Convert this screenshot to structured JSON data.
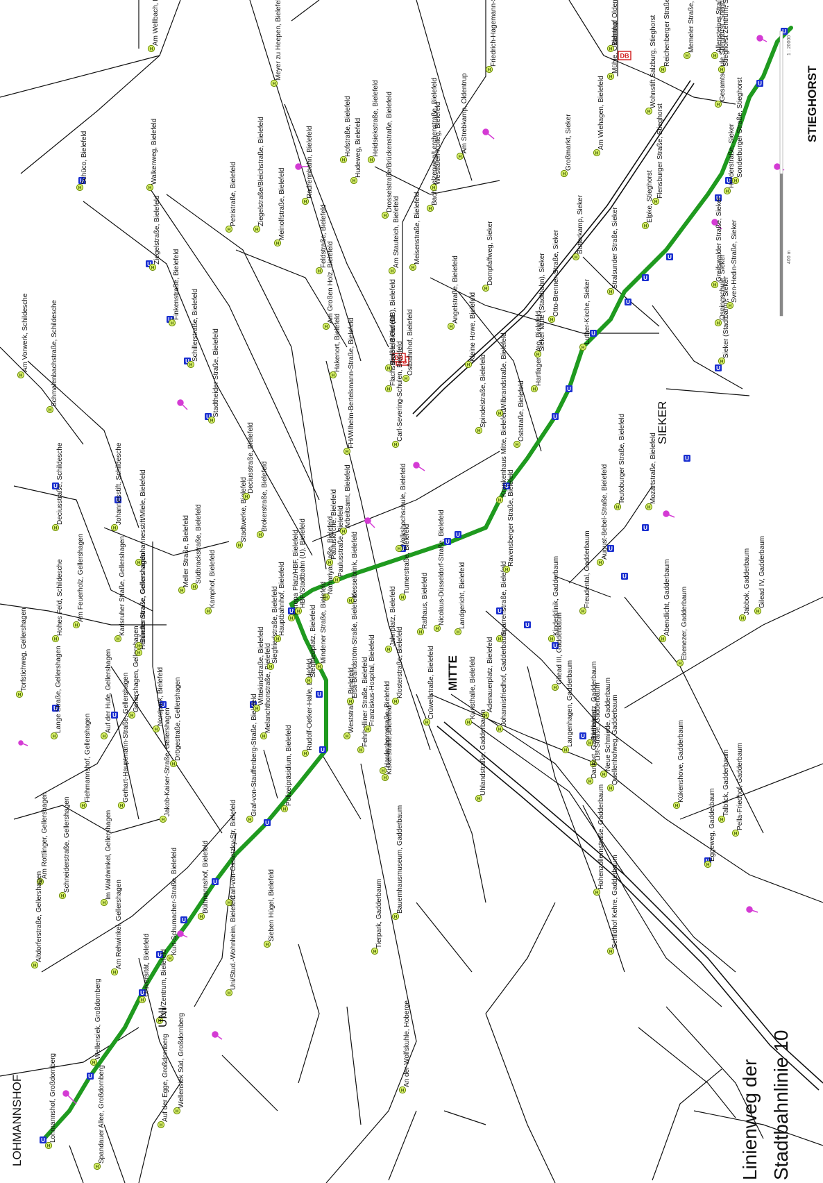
{
  "title": {
    "line1": "Linienweg der",
    "line2": "Stadtbahnlinie 10"
  },
  "districts": [
    "LOHMANNSHOF",
    "UNI",
    "MITTE",
    "SIEKER",
    "STIEGHORST"
  ],
  "scale_bar": {
    "ratio": "1 : 20000",
    "length": "400 m"
  },
  "symbols": {
    "stadtbahn": "U",
    "bus": "H",
    "rail": "DB"
  },
  "colors": {
    "route": "#1f9a1f",
    "network": "#111111",
    "bus_stop_fill": "#d8f06a",
    "bus_stop_stroke": "#6a8a00",
    "stadtbahn_stop": "#1a2fd0",
    "rail_stop": "#d01818",
    "poi": "#d43bd4"
  },
  "stations": [
    {
      "name": "Lohmannshof, Großdornberg",
      "type": "U"
    },
    {
      "name": "Wellensiek, Großdornberg",
      "type": "U"
    },
    {
      "name": "Universität, Bielefeld",
      "type": "U"
    },
    {
      "name": "Uni/Zentrum, Bielefeld",
      "type": "U"
    },
    {
      "name": "Kurt-Schumacher-Straße, Bielefeld",
      "type": "U"
    },
    {
      "name": "Bültmannshof, Bielefeld",
      "type": "U"
    },
    {
      "name": "Graf-von-Stauffenberg-Straße, Bielefeld",
      "type": "U"
    },
    {
      "name": "Rudolf-Oetker-Halle, Bielefeld",
      "type": "U"
    },
    {
      "name": "Siegfriedplatz, Bielefeld",
      "type": "U"
    },
    {
      "name": "Hauptbahnhof, Bielefeld",
      "type": "U"
    },
    {
      "name": "Jahnplatz, Bielefeld",
      "type": "U"
    },
    {
      "name": "Rathaus, Bielefeld",
      "type": "U"
    },
    {
      "name": "Nicolaus-Düsseldorf-Straße, Bielefeld",
      "type": "U"
    },
    {
      "name": "Ravensberger Straße, Bielefeld",
      "type": "U"
    },
    {
      "name": "Krankenhaus Mitte, Bielefeld",
      "type": "U"
    },
    {
      "name": "Oststraße, Bielefeld",
      "type": "U"
    },
    {
      "name": "Hartlager Weg, Bielefeld",
      "type": "U"
    },
    {
      "name": "Sieker Mitte (Stadtbahn), Sieker",
      "type": "U"
    },
    {
      "name": "Luther-Kirche, Sieker",
      "type": "U"
    },
    {
      "name": "Stralsunder Straße, Sieker",
      "type": "U"
    },
    {
      "name": "Elpke, Stieghorst",
      "type": "U"
    },
    {
      "name": "Flensburger Straße, Stieghorst",
      "type": "U"
    },
    {
      "name": "Gesamtschule Stieghorst, Stieghorst",
      "type": "U"
    },
    {
      "name": "Stieghorst Zentrum, Stieghorst",
      "type": "U"
    },
    {
      "name": "Schüco, Bielefeld",
      "type": "U"
    },
    {
      "name": "Ziegelstraße, Bielefeld",
      "type": "U"
    },
    {
      "name": "Finkenstraße, Bielefeld",
      "type": "U"
    },
    {
      "name": "Schillerstraße, Bielefeld",
      "type": "U"
    },
    {
      "name": "Stadtheider Straße, Bielefeld",
      "type": "U"
    },
    {
      "name": "Deciusstraße, Schildesche",
      "type": "U"
    },
    {
      "name": "Johannesstift, Schildesche",
      "type": "U"
    },
    {
      "name": "Lange Straße, Gellershagen",
      "type": "U"
    },
    {
      "name": "Auf der Hufe, Gellershagen",
      "type": "U"
    },
    {
      "name": "Nordpark, Bielefeld",
      "type": "U"
    },
    {
      "name": "Wittekindstraße, Bielefeld",
      "type": "U"
    },
    {
      "name": "Landgericht, Bielefeld",
      "type": "U"
    },
    {
      "name": "Kunsthalle, Bielefeld",
      "type": "U"
    },
    {
      "name": "Adenauerplatz, Bielefeld",
      "type": "U"
    },
    {
      "name": "August-Bebel-Straße, Bielefeld",
      "type": "U"
    },
    {
      "name": "Teutoburger Straße, Bielefeld",
      "type": "U"
    },
    {
      "name": "Mozartstraße, Bielefeld",
      "type": "U"
    },
    {
      "name": "Prießallee, Bielefeld",
      "type": "U"
    },
    {
      "name": "Sieker (Stadtbahn), Sieker",
      "type": "U"
    },
    {
      "name": "Bethel, Gadderbaum",
      "type": "U"
    },
    {
      "name": "Eggeweg, Gadderbaum",
      "type": "U"
    },
    {
      "name": "Bielefeld Hbf",
      "type": "DB"
    },
    {
      "name": "Bielefeld Ost (DB)",
      "type": "DB"
    },
    {
      "name": "Oldentrup",
      "type": "DB"
    }
  ],
  "labels": [
    "Am Vorwerk, Schildesche",
    "Schmalenbachstraße, Schildesche",
    "Deciusstraße, Schildesche",
    "Johannesstift, Schildesche",
    "Torfstichweg, Gellershagen",
    "Hohes Feld, Schildesche",
    "Am Feuerholz, Gellershagen",
    "Gellershagen, Gellershagen",
    "Johannesstift/Mlele, Bielefeld",
    "Meller Straße, Bielefeld",
    "Südbrackstraße, Bielefeld",
    "Kamphof, Bielefeld",
    "Bünder Straße, Gellershagen",
    "Karlsruher Straße, Gellershagen",
    "Hennettenstraße, Gellershagen",
    "Lange Straße, Gellershagen",
    "Auf der Hufe, Gellershagen",
    "Nordpark, Bielefeld",
    "Drögestraße, Gellershagen",
    "Fiehmannshof, Gellershagen",
    "Gerhart-Hauptmann-Straße, Gellershagen",
    "Jakob-Kaiser-Straße, Gellershagen",
    "Am Rottlinger, Gellershagen",
    "Schneiderstraße, Gellershagen",
    "Im Waldwinkel, Gellershagen",
    "Am Rehwinkel, Gellershagen",
    "Altdorferstraße, Gellershagen",
    "Kurt-Schumacher-Straße, Bielefeld",
    "Bültmannshof, Bielefeld",
    "Carl-von-Ossietzky-Str, Bielefeld",
    "Universität, Bielefeld",
    "Uni/Zentrum, Bielefeld",
    "Wellensiek, Großdornberg",
    "Lohmannshof, Großdornberg",
    "Spandauer Allee, Großdornberg",
    "Wellensiek Süd, Großdornberg",
    "Auf der Egge, Großdornberg",
    "Uni/Stud.-Wohnheim, Bielefeld",
    "Sieben Hügel, Bielefeld",
    "Graf-von-Stauffenberg-Straße, Bielefeld",
    "Polizeipräsidium, Bielefeld",
    "Rudolf-Oetker-Halle, Bielefeld",
    "Melanchthonstraße, Bielefeld",
    "Wittekindstraße, Bielefeld",
    "Siegfriedstraße, Bielefeld",
    "Siegfriedplatz, Bielefeld",
    "Weststraße, Bielefeld",
    "Fehrbelliner Straße, Bielefeld",
    "Hauptbahnhof, Bielefeld",
    "Europa Platz/HBF, Bielefeld",
    "HBF/Stadtbahn (U), Bielefeld",
    "Nahariyastraße, Bielefeld",
    "Mindener Straße, Bielefeld",
    "Elsa-Brändström-Straße, Bielefeld",
    "Franziskus-Hospital, Bielefeld",
    "Hardenbergstraße, Bielefeld",
    "Kiskerstraße, Bielefeld",
    "Crüwellstraße, Bielefeld",
    "Klosterstraße, Bielefeld",
    "Jahnplatz, Bielefeld",
    "Kesselbrink, Bielefeld",
    "Paulusstraße, Bielefeld",
    "Pauluskirche, Bielefeld",
    "Arbeitsamt, Bielefeld",
    "Brokerstraße, Bielefeld",
    "Stadtwerke, Bielefeld",
    "Deciusstraße, Bielefeld",
    "Turnerstraße, Bielefeld",
    "Volkshochschule, Bielefeld",
    "Rathaus, Bielefeld",
    "Nicolaus-Düsseldorf-Straße, Bielefeld",
    "Landgericht, Bielefeld",
    "Kunsthalle, Bielefeld",
    "Adenauerplatz, Bielefeld",
    "Sparrenstraße, Bielefeld",
    "Ravensberger Straße, Bielefeld",
    "Krankenhaus Mitte, Bielefeld",
    "Oststraße, Bielefeld",
    "Hartlager Weg, Bielefeld",
    "Spindelstraße, Bielefeld",
    "Wilbrandstraße, Bielefeld",
    "Kleine Howe, Bielefeld",
    "Angelstraße, Bielefeld",
    "Carl-Severing-Schulen, Bielefeld",
    "Ostbahnhof, Bielefeld",
    "Bielefeld Ost (DB), Bielefeld",
    "Flachsstraße, Bielefeld",
    "FH/Wilhelm-Bertelsmann-Straße, Bielefeld",
    "Hakenort, Bielefeld",
    "Am Großen Holz, Bielefeld",
    "Feldstraße, Bielefeld",
    "Meinolfstraße, Bielefeld",
    "Ziegelstraße/Bleichstraße, Bielefeld",
    "Petristraße, Bielefeld",
    "Radrennbahn, Bielefeld",
    "Hudeweg, Bielefeld",
    "Hofstraße, Bielefeld",
    "Heidsiekstraße, Bielefeld",
    "Drosselstraße/Brückenstraße, Bielefeld",
    "Am Stauteich, Bielefeld",
    "Meisenstraße, Bielefeld",
    "Bachstelzenweg/Lerchenstraße, Bielefeld",
    "Westfalen-Kolleg, Bielefeld",
    "Am Strebkamp, Oldentrup",
    "Friedrich-Hagemann-Straße, Oldentrup",
    "Schüco, Bielefeld",
    "Ziegelstraße, Bielefeld",
    "Finkenstraße, Bielefeld",
    "Schillerstraße, Bielefeld",
    "Stadtheider Straße, Bielefeld",
    "Walkenweg, Bielefeld",
    "Am Wellbach, Bielefeld",
    "Meyer zu Heepen, Bielefeld",
    "Dompfaffweg, Sieker",
    "Großmarkt, Sieker",
    "Butterkamp, Sieker",
    "Otto-Brenner-Straße, Sieker",
    "Sieker Mitte (Stadtbahn), Sieker",
    "Luther-Kirche, Sieker",
    "Stralsunder Straße, Sieker",
    "Elpke, Stieghorst",
    "Flensburger Straße, Stieghorst",
    "Wohnstift Salzburg, Stieghorst",
    "Reichenberger Straße, Stieghorst",
    "Memeler Straße, Stieghorst",
    "Allensteiner Straße, Stieghorst",
    "Gesamtschule Stieghorst, Stieghorst",
    "Stieghorst Zentrum, Stieghorst",
    "Am Wiehagen, Bielefeld",
    "Mühle, Oldentrup",
    "Bahnhof Oldentrup",
    "Herderstraße, Sieker",
    "Greifswalder Straße, Sieker",
    "Osningschule, Sieker",
    "Sieker (Stadtbahn), Sieker",
    "Sven-Hedin-Straße, Sieker",
    "Sonderburger Straße, Stieghorst",
    "Mozartstraße, Bielefeld",
    "Teutoburger Straße, Bielefeld",
    "August-Bebel-Straße, Bielefeld",
    "Freudental, Gadderbaum",
    "Kinderklinik, Gadderbaum",
    "Gilead III, Gadderbaum",
    "Abendlicht, Gadderbaum",
    "Ebenezer, Gadderbaum",
    "Jabbok, Gadderbaum",
    "Gilead IV, Gadderbaum",
    "Bethelplatz, Gadderbaum",
    "List-Straße, Gadderbaum",
    "Dankort, Gadderbaum",
    "Neue Schmiede, Gadderbaum",
    "Quellenhofweg, Gadderbaum",
    "Kükenshove, Gadderbaum",
    "Talblick, Gadderbaum",
    "Pella-Friedhof, Gadderbaum",
    "Langenhagen, Gadderbaum",
    "Hohenzollernstraße, Gadderbaum",
    "Schildhof Kehre, Gadderbaum",
    "Eggeweg, Gadderbaum",
    "Johannisfriedhof, Gadderbaum",
    "Uhlandstraße, Gadderbaum",
    "Bauernhausmuseum, Gadderbaum",
    "Tierpark, Gadderbaum",
    "An der Wolfskuhle, Hoberge"
  ]
}
